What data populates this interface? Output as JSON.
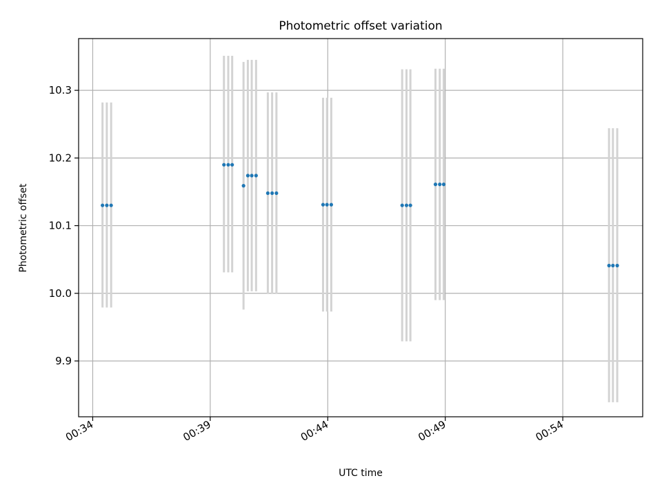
{
  "chart_data": {
    "type": "scatter",
    "title": "Photometric offset variation",
    "xlabel": "UTC time",
    "ylabel": "Photometric offset",
    "x_format": "HH:MM",
    "xlim": [
      "00:33:24",
      "00:57:24"
    ],
    "ylim": [
      9.8175,
      10.3765
    ],
    "x_ticks": [
      "00:34",
      "00:39",
      "00:44",
      "00:49",
      "00:54"
    ],
    "y_ticks": [
      9.9,
      10.0,
      10.1,
      10.2,
      10.3
    ],
    "y_tick_labels": [
      "9.9",
      "10.0",
      "10.1",
      "10.2",
      "10.3"
    ],
    "grid": true,
    "point_color": "#1f77b4",
    "errorbar_color": "#d3d3d3",
    "points": [
      {
        "x": "00:34:25",
        "y": 10.13,
        "err_low": 9.979,
        "err_high": 10.282
      },
      {
        "x": "00:34:36",
        "y": 10.13,
        "err_low": 9.979,
        "err_high": 10.282
      },
      {
        "x": "00:34:47",
        "y": 10.13,
        "err_low": 9.979,
        "err_high": 10.282
      },
      {
        "x": "00:39:35",
        "y": 10.19,
        "err_low": 10.031,
        "err_high": 10.351
      },
      {
        "x": "00:39:46",
        "y": 10.19,
        "err_low": 10.031,
        "err_high": 10.351
      },
      {
        "x": "00:39:56",
        "y": 10.19,
        "err_low": 10.031,
        "err_high": 10.351
      },
      {
        "x": "00:40:25",
        "y": 10.159,
        "err_low": 9.976,
        "err_high": 10.342
      },
      {
        "x": "00:40:36",
        "y": 10.174,
        "err_low": 10.003,
        "err_high": 10.345
      },
      {
        "x": "00:40:46",
        "y": 10.174,
        "err_low": 10.003,
        "err_high": 10.345
      },
      {
        "x": "00:40:57",
        "y": 10.174,
        "err_low": 10.003,
        "err_high": 10.345
      },
      {
        "x": "00:41:27",
        "y": 10.148,
        "err_low": 9.999,
        "err_high": 10.297
      },
      {
        "x": "00:41:38",
        "y": 10.148,
        "err_low": 9.999,
        "err_high": 10.297
      },
      {
        "x": "00:41:49",
        "y": 10.148,
        "err_low": 9.999,
        "err_high": 10.297
      },
      {
        "x": "00:43:48",
        "y": 10.131,
        "err_low": 9.973,
        "err_high": 10.289
      },
      {
        "x": "00:43:58",
        "y": 10.131,
        "err_low": 9.973,
        "err_high": 10.289
      },
      {
        "x": "00:44:09",
        "y": 10.131,
        "err_low": 9.973,
        "err_high": 10.289
      },
      {
        "x": "00:47:10",
        "y": 10.13,
        "err_low": 9.929,
        "err_high": 10.331
      },
      {
        "x": "00:47:21",
        "y": 10.13,
        "err_low": 9.929,
        "err_high": 10.331
      },
      {
        "x": "00:47:31",
        "y": 10.13,
        "err_low": 9.929,
        "err_high": 10.331
      },
      {
        "x": "00:48:35",
        "y": 10.161,
        "err_low": 9.99,
        "err_high": 10.332
      },
      {
        "x": "00:48:46",
        "y": 10.161,
        "err_low": 9.99,
        "err_high": 10.332
      },
      {
        "x": "00:48:56",
        "y": 10.161,
        "err_low": 9.99,
        "err_high": 10.332
      },
      {
        "x": "00:55:58",
        "y": 10.041,
        "err_low": 9.839,
        "err_high": 10.244
      },
      {
        "x": "00:56:08",
        "y": 10.041,
        "err_low": 9.839,
        "err_high": 10.244
      },
      {
        "x": "00:56:19",
        "y": 10.041,
        "err_low": 9.839,
        "err_high": 10.244
      }
    ]
  }
}
